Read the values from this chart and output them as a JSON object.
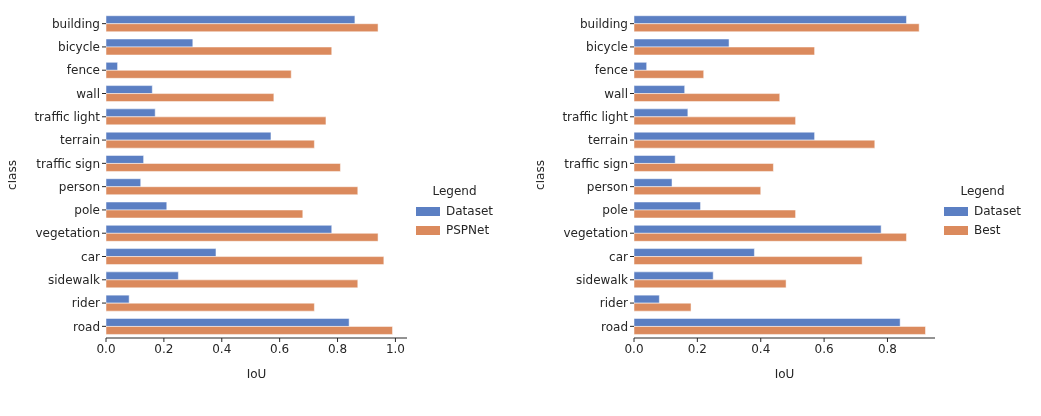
{
  "chart_data": [
    {
      "type": "bar",
      "orientation": "horizontal",
      "xlabel": "IoU",
      "ylabel": "class",
      "legend_title": "Legend",
      "legend": "right",
      "categories": [
        "building",
        "bicycle",
        "fence",
        "wall",
        "traffic light",
        "terrain",
        "traffic sign",
        "person",
        "pole",
        "vegetation",
        "car",
        "sidewalk",
        "rider",
        "road"
      ],
      "series": [
        {
          "name": "Dataset",
          "color": "#5b7fc3",
          "values": [
            0.86,
            0.3,
            0.04,
            0.16,
            0.17,
            0.57,
            0.13,
            0.12,
            0.21,
            0.78,
            0.38,
            0.25,
            0.08,
            0.84
          ]
        },
        {
          "name": "PSPNet",
          "color": "#db8a5d",
          "values": [
            0.94,
            0.78,
            0.64,
            0.58,
            0.76,
            0.72,
            0.81,
            0.87,
            0.68,
            0.94,
            0.96,
            0.87,
            0.72,
            0.99
          ]
        }
      ],
      "xlim": [
        0,
        1.04
      ],
      "xticks": [
        {
          "value": 0,
          "label": "0.0"
        },
        {
          "value": 0.2,
          "label": "0.2"
        },
        {
          "value": 0.4,
          "label": "0.4"
        },
        {
          "value": 0.6,
          "label": "0.6"
        },
        {
          "value": 0.8,
          "label": "0.8"
        },
        {
          "value": 1,
          "label": "1.0"
        }
      ],
      "grid": false
    },
    {
      "type": "bar",
      "orientation": "horizontal",
      "xlabel": "IoU",
      "ylabel": "class",
      "legend_title": "Legend",
      "legend": "right",
      "categories": [
        "building",
        "bicycle",
        "fence",
        "wall",
        "traffic light",
        "terrain",
        "traffic sign",
        "person",
        "pole",
        "vegetation",
        "car",
        "sidewalk",
        "rider",
        "road"
      ],
      "series": [
        {
          "name": "Dataset",
          "color": "#5b7fc3",
          "values": [
            0.86,
            0.3,
            0.04,
            0.16,
            0.17,
            0.57,
            0.13,
            0.12,
            0.21,
            0.78,
            0.38,
            0.25,
            0.08,
            0.84
          ]
        },
        {
          "name": "Best",
          "color": "#db8a5d",
          "values": [
            0.9,
            0.57,
            0.22,
            0.46,
            0.51,
            0.76,
            0.44,
            0.4,
            0.51,
            0.86,
            0.72,
            0.48,
            0.18,
            0.92
          ]
        }
      ],
      "xlim": [
        0,
        0.95
      ],
      "xticks": [
        {
          "value": 0,
          "label": "0.0"
        },
        {
          "value": 0.2,
          "label": "0.2"
        },
        {
          "value": 0.4,
          "label": "0.4"
        },
        {
          "value": 0.6,
          "label": "0.6"
        },
        {
          "value": 0.8,
          "label": "0.8"
        }
      ],
      "grid": false
    }
  ]
}
